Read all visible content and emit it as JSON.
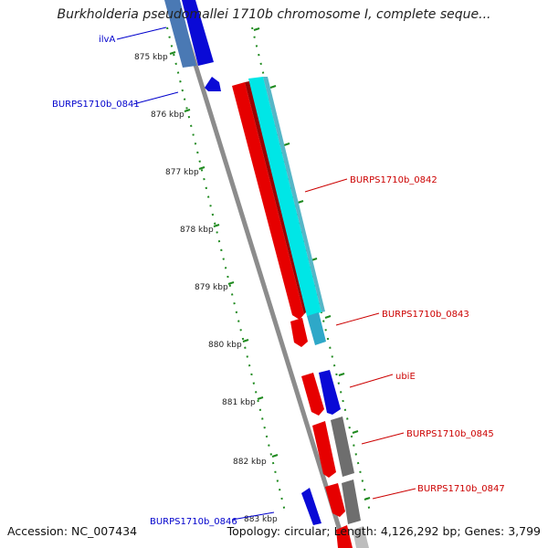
{
  "title": "Burkholderia pseudomallei 1710b chromosome I, complete seque...",
  "accession": "Accession: NC_007434",
  "summary": "Topology: circular; Length: 4,126,292 bp; Genes: 3,799",
  "colors": {
    "backbone": "#8c8c8c",
    "ruler": "#1f8a1f",
    "label_forward": "#0000cc",
    "label_reverse": "#cc0000"
  },
  "ruler_ticks": [
    "875 kbp",
    "876 kbp",
    "877 kbp",
    "878 kbp",
    "879 kbp",
    "880 kbp",
    "881 kbp",
    "882 kbp",
    "883 kbp"
  ],
  "gene_labels": [
    {
      "text": "ilvA",
      "strand": "forward"
    },
    {
      "text": "BURPS1710b_0841",
      "strand": "forward"
    },
    {
      "text": "BURPS1710b_0842",
      "strand": "reverse"
    },
    {
      "text": "BURPS1710b_0843",
      "strand": "reverse"
    },
    {
      "text": "ubiE",
      "strand": "reverse"
    },
    {
      "text": "BURPS1710b_0845",
      "strand": "reverse"
    },
    {
      "text": "BURPS1710b_0847",
      "strand": "reverse"
    },
    {
      "text": "BURPS1710b_0846",
      "strand": "forward"
    }
  ]
}
